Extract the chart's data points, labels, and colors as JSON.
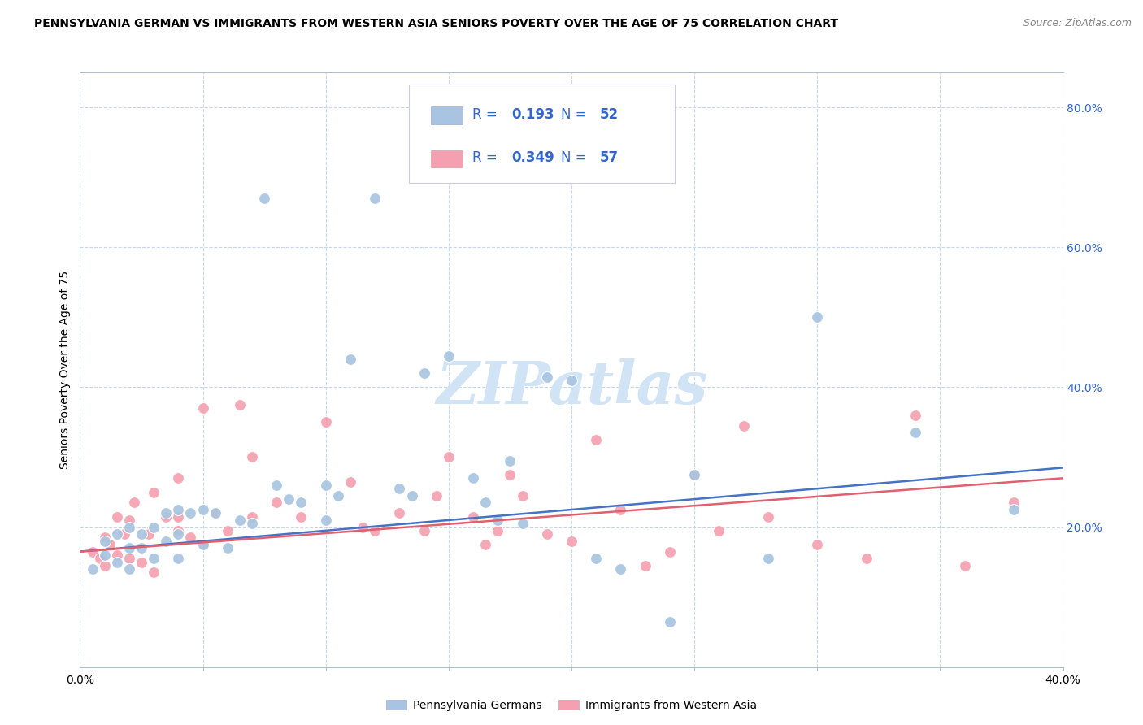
{
  "title": "PENNSYLVANIA GERMAN VS IMMIGRANTS FROM WESTERN ASIA SENIORS POVERTY OVER THE AGE OF 75 CORRELATION CHART",
  "source": "Source: ZipAtlas.com",
  "ylabel": "Seniors Poverty Over the Age of 75",
  "xmin": 0.0,
  "xmax": 0.4,
  "ymin": 0.0,
  "ymax": 0.85,
  "x_ticks": [
    0.0,
    0.05,
    0.1,
    0.15,
    0.2,
    0.25,
    0.3,
    0.35,
    0.4
  ],
  "y_ticks_right": [
    0.2,
    0.4,
    0.6,
    0.8
  ],
  "y_tick_labels_right": [
    "20.0%",
    "40.0%",
    "60.0%",
    "80.0%"
  ],
  "bottom_legend": [
    {
      "label": "Pennsylvania Germans",
      "color": "#a8c4e0"
    },
    {
      "label": "Immigrants from Western Asia",
      "color": "#f4a0b0"
    }
  ],
  "blue_color": "#a8c4e0",
  "pink_color": "#f4a0b0",
  "blue_line_color": "#4472c4",
  "pink_line_color": "#e06070",
  "watermark": "ZIPatlas",
  "blue_points_x": [
    0.005,
    0.01,
    0.01,
    0.015,
    0.015,
    0.02,
    0.02,
    0.02,
    0.025,
    0.025,
    0.03,
    0.03,
    0.035,
    0.035,
    0.04,
    0.04,
    0.04,
    0.045,
    0.05,
    0.05,
    0.055,
    0.06,
    0.065,
    0.07,
    0.075,
    0.08,
    0.085,
    0.09,
    0.1,
    0.1,
    0.105,
    0.11,
    0.12,
    0.13,
    0.135,
    0.14,
    0.15,
    0.16,
    0.165,
    0.17,
    0.175,
    0.18,
    0.19,
    0.2,
    0.21,
    0.22,
    0.24,
    0.25,
    0.28,
    0.3,
    0.34,
    0.38
  ],
  "blue_points_y": [
    0.14,
    0.16,
    0.18,
    0.15,
    0.19,
    0.14,
    0.17,
    0.2,
    0.17,
    0.19,
    0.155,
    0.2,
    0.18,
    0.22,
    0.155,
    0.19,
    0.225,
    0.22,
    0.175,
    0.225,
    0.22,
    0.17,
    0.21,
    0.205,
    0.67,
    0.26,
    0.24,
    0.235,
    0.21,
    0.26,
    0.245,
    0.44,
    0.67,
    0.255,
    0.245,
    0.42,
    0.445,
    0.27,
    0.235,
    0.21,
    0.295,
    0.205,
    0.415,
    0.41,
    0.155,
    0.14,
    0.065,
    0.275,
    0.155,
    0.5,
    0.335,
    0.225
  ],
  "pink_points_x": [
    0.005,
    0.008,
    0.01,
    0.01,
    0.012,
    0.015,
    0.015,
    0.018,
    0.02,
    0.02,
    0.022,
    0.025,
    0.028,
    0.03,
    0.03,
    0.035,
    0.04,
    0.04,
    0.04,
    0.045,
    0.05,
    0.05,
    0.055,
    0.06,
    0.065,
    0.07,
    0.07,
    0.08,
    0.09,
    0.1,
    0.11,
    0.115,
    0.12,
    0.13,
    0.14,
    0.145,
    0.15,
    0.16,
    0.165,
    0.17,
    0.175,
    0.18,
    0.19,
    0.2,
    0.21,
    0.22,
    0.23,
    0.24,
    0.25,
    0.26,
    0.27,
    0.28,
    0.3,
    0.32,
    0.34,
    0.36,
    0.38
  ],
  "pink_points_y": [
    0.165,
    0.155,
    0.145,
    0.185,
    0.175,
    0.16,
    0.215,
    0.19,
    0.155,
    0.21,
    0.235,
    0.15,
    0.19,
    0.135,
    0.25,
    0.215,
    0.195,
    0.215,
    0.27,
    0.185,
    0.175,
    0.37,
    0.22,
    0.195,
    0.375,
    0.215,
    0.3,
    0.235,
    0.215,
    0.35,
    0.265,
    0.2,
    0.195,
    0.22,
    0.195,
    0.245,
    0.3,
    0.215,
    0.175,
    0.195,
    0.275,
    0.245,
    0.19,
    0.18,
    0.325,
    0.225,
    0.145,
    0.165,
    0.275,
    0.195,
    0.345,
    0.215,
    0.175,
    0.155,
    0.36,
    0.145,
    0.235
  ],
  "blue_trend_x": [
    0.0,
    0.4
  ],
  "blue_trend_y": [
    0.165,
    0.285
  ],
  "pink_trend_x": [
    0.0,
    0.4
  ],
  "pink_trend_y": [
    0.165,
    0.27
  ],
  "title_fontsize": 10,
  "source_fontsize": 9,
  "label_fontsize": 10,
  "tick_fontsize": 10,
  "legend_fontsize": 12,
  "watermark_fontsize": 52,
  "watermark_color": "#d0e4f5",
  "background_color": "#ffffff",
  "plot_background": "#ffffff",
  "grid_color": "#c8d8ea",
  "border_color": "#b0c0d0",
  "legend_text_color": "#3366cc",
  "legend_box_color": "#e8e8f0"
}
